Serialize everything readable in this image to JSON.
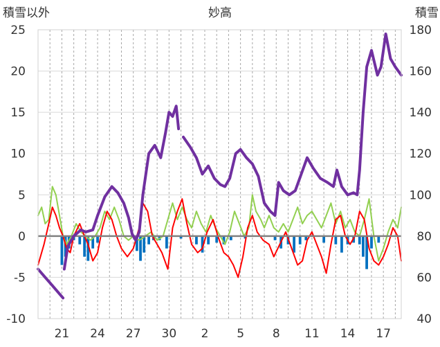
{
  "chart_data": {
    "type": "line",
    "title": "妙高",
    "ylabel_left": "積雪以外",
    "ylabel_right": "積雪",
    "x_tick_labels": [
      "21",
      "24",
      "27",
      "30",
      "2",
      "5",
      "8",
      "11",
      "14",
      "17"
    ],
    "x_tick_days": [
      2,
      5,
      8,
      11,
      14,
      17,
      20,
      23,
      26,
      29
    ],
    "y_left_range": [
      -10,
      25
    ],
    "y_left_ticks": [
      -10,
      -5,
      0,
      5,
      10,
      15,
      20,
      25
    ],
    "y_right_range": [
      40,
      180
    ],
    "y_right_ticks": [
      40,
      60,
      80,
      100,
      120,
      140,
      160,
      180
    ],
    "x_range_days": [
      0,
      30.5
    ],
    "grid": "dashed vertical daily, solid horizontal",
    "colors": {
      "snow_depth": "#7030a0",
      "temperature": "#ff0000",
      "sunshine": "#92d050",
      "precipitation": "#0070c0",
      "zero_line": "#808080"
    },
    "series": [
      {
        "key": "snow_depth",
        "axis": "right",
        "points": [
          [
            0.0,
            64
          ],
          [
            0.6,
            60
          ],
          [
            1.2,
            56
          ],
          [
            1.8,
            52
          ],
          [
            2.1,
            50
          ],
          [
            2.2,
            64
          ],
          [
            2.5,
            75
          ],
          [
            3.0,
            80
          ],
          [
            3.6,
            83
          ],
          [
            4.0,
            82
          ],
          [
            4.6,
            83
          ],
          [
            5.0,
            90
          ],
          [
            5.6,
            99
          ],
          [
            6.2,
            104
          ],
          [
            6.7,
            101
          ],
          [
            7.2,
            96
          ],
          [
            7.6,
            89
          ],
          [
            7.9,
            81
          ],
          [
            8.2,
            78
          ],
          [
            8.5,
            82
          ],
          [
            8.8,
            100
          ],
          [
            9.3,
            120
          ],
          [
            9.8,
            124
          ],
          [
            10.3,
            118
          ],
          [
            10.7,
            130
          ],
          [
            11.0,
            140
          ],
          [
            11.3,
            138
          ],
          [
            11.6,
            143
          ],
          [
            11.8,
            132
          ],
          [
            12.2,
            128
          ],
          [
            12.8,
            123
          ],
          [
            13.3,
            118
          ],
          [
            13.8,
            110
          ],
          [
            14.3,
            114
          ],
          [
            14.8,
            108
          ],
          [
            15.3,
            105
          ],
          [
            15.7,
            104
          ],
          [
            16.1,
            108
          ],
          [
            16.6,
            120
          ],
          [
            17.0,
            122
          ],
          [
            17.5,
            118
          ],
          [
            18.0,
            115
          ],
          [
            18.5,
            109
          ],
          [
            19.0,
            96
          ],
          [
            19.5,
            92
          ],
          [
            19.9,
            90
          ],
          [
            20.2,
            106
          ],
          [
            20.6,
            102
          ],
          [
            21.1,
            100
          ],
          [
            21.6,
            102
          ],
          [
            22.1,
            110
          ],
          [
            22.6,
            118
          ],
          [
            23.1,
            113
          ],
          [
            23.7,
            108
          ],
          [
            24.3,
            106
          ],
          [
            24.8,
            104
          ],
          [
            25.1,
            112
          ],
          [
            25.5,
            104
          ],
          [
            26.0,
            100
          ],
          [
            26.5,
            101
          ],
          [
            26.8,
            100
          ],
          [
            27.0,
            112
          ],
          [
            27.3,
            140
          ],
          [
            27.6,
            162
          ],
          [
            28.0,
            170
          ],
          [
            28.5,
            158
          ],
          [
            28.8,
            162
          ],
          [
            29.2,
            178
          ],
          [
            29.6,
            166
          ],
          [
            30.0,
            162
          ],
          [
            30.5,
            158
          ]
        ],
        "gaps": [
          [
            2.1,
            2.2
          ],
          [
            11.8,
            12.2
          ]
        ]
      },
      {
        "key": "temperature",
        "axis": "left",
        "points": [
          [
            0.0,
            -3.5
          ],
          [
            0.5,
            -1.0
          ],
          [
            0.9,
            1.5
          ],
          [
            1.2,
            3.5
          ],
          [
            1.5,
            2.5
          ],
          [
            1.8,
            1.0
          ],
          [
            2.1,
            0.0
          ],
          [
            2.4,
            -1.5
          ],
          [
            2.7,
            -2.0
          ],
          [
            3.0,
            0.0
          ],
          [
            3.5,
            1.5
          ],
          [
            3.9,
            0.0
          ],
          [
            4.2,
            -1.0
          ],
          [
            4.6,
            -3.0
          ],
          [
            5.0,
            -2.0
          ],
          [
            5.4,
            1.0
          ],
          [
            5.8,
            3.0
          ],
          [
            6.2,
            2.0
          ],
          [
            6.6,
            0.0
          ],
          [
            7.0,
            -1.5
          ],
          [
            7.5,
            -2.5
          ],
          [
            8.0,
            -1.5
          ],
          [
            8.5,
            1.0
          ],
          [
            8.8,
            4.0
          ],
          [
            9.2,
            3.0
          ],
          [
            9.6,
            0.0
          ],
          [
            10.0,
            -1.0
          ],
          [
            10.4,
            -2.0
          ],
          [
            10.9,
            -4.0
          ],
          [
            11.3,
            1.0
          ],
          [
            11.7,
            3.0
          ],
          [
            12.1,
            4.5
          ],
          [
            12.5,
            1.5
          ],
          [
            12.9,
            -1.0
          ],
          [
            13.4,
            -2.0
          ],
          [
            13.8,
            -1.5
          ],
          [
            14.2,
            0.5
          ],
          [
            14.7,
            2.0
          ],
          [
            15.1,
            0.0
          ],
          [
            15.6,
            -2.0
          ],
          [
            16.0,
            -2.5
          ],
          [
            16.4,
            -3.5
          ],
          [
            16.8,
            -5.0
          ],
          [
            17.2,
            -2.5
          ],
          [
            17.6,
            1.0
          ],
          [
            18.0,
            2.5
          ],
          [
            18.4,
            0.5
          ],
          [
            18.9,
            -0.5
          ],
          [
            19.4,
            -1.0
          ],
          [
            19.8,
            -2.5
          ],
          [
            20.3,
            -1.0
          ],
          [
            20.8,
            0.5
          ],
          [
            21.3,
            -1.5
          ],
          [
            21.8,
            -3.5
          ],
          [
            22.2,
            -3.0
          ],
          [
            22.6,
            -0.5
          ],
          [
            23.0,
            0.5
          ],
          [
            23.4,
            -1.0
          ],
          [
            23.8,
            -2.5
          ],
          [
            24.2,
            -4.5
          ],
          [
            24.6,
            -1.0
          ],
          [
            25.0,
            2.0
          ],
          [
            25.4,
            2.5
          ],
          [
            25.8,
            0.0
          ],
          [
            26.2,
            -1.0
          ],
          [
            26.6,
            0.0
          ],
          [
            27.0,
            3.0
          ],
          [
            27.4,
            2.0
          ],
          [
            27.8,
            -1.5
          ],
          [
            28.2,
            -3.0
          ],
          [
            28.6,
            -3.5
          ],
          [
            29.0,
            -2.5
          ],
          [
            29.4,
            -1.0
          ],
          [
            29.8,
            1.0
          ],
          [
            30.2,
            0.0
          ],
          [
            30.5,
            -3.0
          ]
        ]
      },
      {
        "key": "sunshine",
        "axis": "left",
        "points": [
          [
            0.0,
            2.5
          ],
          [
            0.3,
            3.5
          ],
          [
            0.6,
            1.5
          ],
          [
            0.9,
            2.0
          ],
          [
            1.2,
            6.0
          ],
          [
            1.5,
            5.0
          ],
          [
            1.8,
            2.5
          ],
          [
            2.1,
            0.0
          ],
          [
            2.4,
            -1.0
          ],
          [
            2.8,
            0.0
          ],
          [
            3.2,
            1.5
          ],
          [
            3.6,
            0.5
          ],
          [
            4.0,
            0.0
          ],
          [
            4.4,
            -0.5
          ],
          [
            4.8,
            0.0
          ],
          [
            5.2,
            1.0
          ],
          [
            5.6,
            3.0
          ],
          [
            6.0,
            2.0
          ],
          [
            6.4,
            3.5
          ],
          [
            6.8,
            2.0
          ],
          [
            7.2,
            0.0
          ],
          [
            7.6,
            -0.5
          ],
          [
            8.0,
            0.0
          ],
          [
            8.5,
            -0.5
          ],
          [
            9.0,
            0.0
          ],
          [
            9.5,
            0.5
          ],
          [
            10.0,
            -0.5
          ],
          [
            10.5,
            0.0
          ],
          [
            11.0,
            2.5
          ],
          [
            11.3,
            4.0
          ],
          [
            11.7,
            2.0
          ],
          [
            12.1,
            3.5
          ],
          [
            12.5,
            2.0
          ],
          [
            12.9,
            1.0
          ],
          [
            13.3,
            3.0
          ],
          [
            13.7,
            1.5
          ],
          [
            14.1,
            0.5
          ],
          [
            14.5,
            2.5
          ],
          [
            14.9,
            1.0
          ],
          [
            15.3,
            0.0
          ],
          [
            15.7,
            -1.0
          ],
          [
            16.1,
            0.5
          ],
          [
            16.5,
            3.0
          ],
          [
            16.9,
            1.5
          ],
          [
            17.3,
            0.0
          ],
          [
            17.7,
            1.0
          ],
          [
            18.0,
            5.0
          ],
          [
            18.3,
            3.0
          ],
          [
            18.7,
            2.0
          ],
          [
            19.0,
            1.0
          ],
          [
            19.4,
            2.5
          ],
          [
            19.8,
            1.0
          ],
          [
            20.2,
            0.5
          ],
          [
            20.6,
            1.5
          ],
          [
            21.0,
            0.5
          ],
          [
            21.4,
            2.0
          ],
          [
            21.8,
            3.5
          ],
          [
            22.2,
            1.5
          ],
          [
            22.6,
            2.5
          ],
          [
            23.0,
            3.0
          ],
          [
            23.4,
            2.0
          ],
          [
            23.8,
            1.0
          ],
          [
            24.2,
            2.5
          ],
          [
            24.6,
            4.0
          ],
          [
            25.0,
            1.5
          ],
          [
            25.4,
            3.0
          ],
          [
            25.8,
            1.0
          ],
          [
            26.2,
            2.0
          ],
          [
            26.6,
            0.5
          ],
          [
            27.0,
            0.0
          ],
          [
            27.4,
            2.0
          ],
          [
            27.8,
            4.5
          ],
          [
            28.2,
            0.0
          ],
          [
            28.6,
            -3.0
          ],
          [
            29.0,
            -1.5
          ],
          [
            29.4,
            0.5
          ],
          [
            29.8,
            2.0
          ],
          [
            30.2,
            1.0
          ],
          [
            30.5,
            3.5
          ]
        ]
      },
      {
        "key": "precipitation",
        "axis": "left",
        "type": "bar",
        "bars": [
          [
            2.0,
            -3.5
          ],
          [
            2.3,
            -2.5
          ],
          [
            2.6,
            -1.5
          ],
          [
            3.0,
            -0.5
          ],
          [
            3.5,
            -1.0
          ],
          [
            3.9,
            -2.5
          ],
          [
            4.2,
            -3.0
          ],
          [
            4.6,
            -1.5
          ],
          [
            5.0,
            -0.8
          ],
          [
            8.3,
            -1.8
          ],
          [
            8.6,
            -3.0
          ],
          [
            8.9,
            -2.0
          ],
          [
            9.3,
            -1.0
          ],
          [
            9.7,
            -0.5
          ],
          [
            10.2,
            -0.5
          ],
          [
            10.8,
            -1.5
          ],
          [
            12.0,
            -0.3
          ],
          [
            13.3,
            -1.0
          ],
          [
            13.8,
            -2.0
          ],
          [
            14.3,
            -1.0
          ],
          [
            15.0,
            -0.8
          ],
          [
            15.6,
            -1.0
          ],
          [
            16.2,
            -0.5
          ],
          [
            17.4,
            -0.3
          ],
          [
            19.9,
            -0.5
          ],
          [
            20.4,
            -1.5
          ],
          [
            21.0,
            -1.0
          ],
          [
            21.5,
            -2.0
          ],
          [
            22.0,
            -1.0
          ],
          [
            22.5,
            -0.5
          ],
          [
            24.0,
            -0.8
          ],
          [
            25.0,
            -1.0
          ],
          [
            25.5,
            -2.0
          ],
          [
            26.0,
            -1.0
          ],
          [
            26.5,
            -0.8
          ],
          [
            27.0,
            -1.0
          ],
          [
            27.3,
            -2.5
          ],
          [
            27.6,
            -4.0
          ],
          [
            28.0,
            -1.5
          ],
          [
            28.6,
            -0.8
          ]
        ]
      }
    ]
  }
}
